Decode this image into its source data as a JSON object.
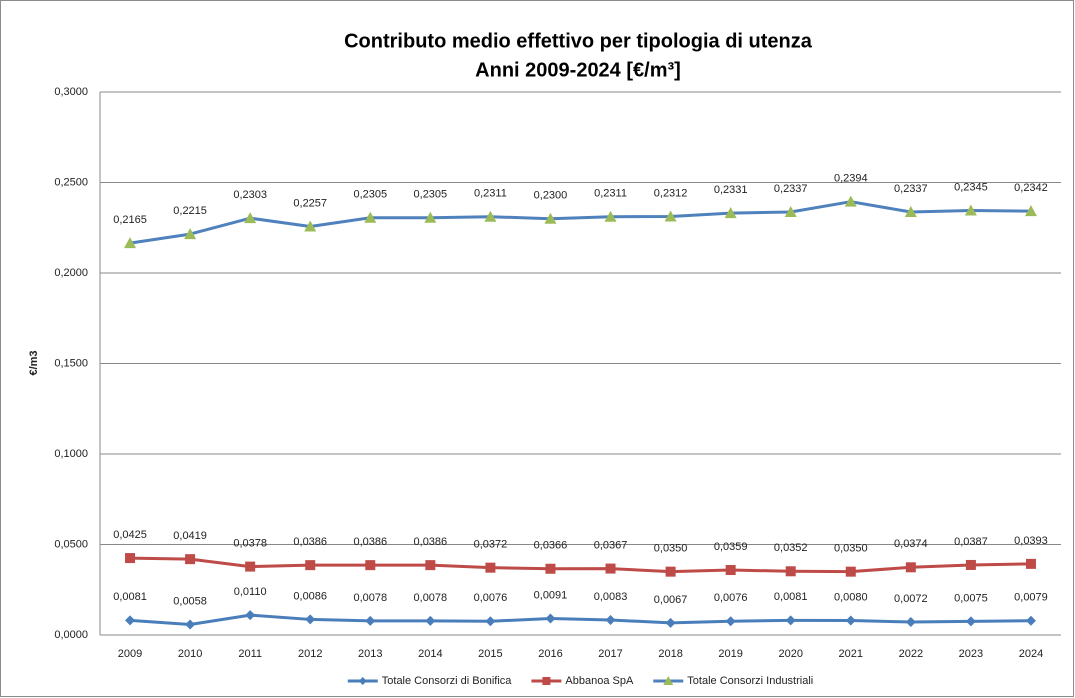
{
  "chart_data": {
    "type": "line",
    "title": "Contributo medio effettivo per tipologia di utenza",
    "subtitle": "Anni 2009-2024 [€/m³]",
    "y_label": "€/m3",
    "categories": [
      "2009",
      "2010",
      "2011",
      "2012",
      "2013",
      "2014",
      "2015",
      "2016",
      "2017",
      "2018",
      "2019",
      "2020",
      "2021",
      "2022",
      "2023",
      "2024"
    ],
    "series": [
      {
        "name": "Totale Consorzi di Bonifica",
        "color": "#4a7ebb",
        "marker": "diamond",
        "marker_color": "#4a7ebb",
        "values": [
          0.0081,
          0.0058,
          0.011,
          0.0086,
          0.0078,
          0.0078,
          0.0076,
          0.0091,
          0.0083,
          0.0067,
          0.0076,
          0.0081,
          0.008,
          0.0072,
          0.0075,
          0.0079
        ],
        "value_labels": [
          "0,0081",
          "0,0058",
          "0,0110",
          "0,0086",
          "0,0078",
          "0,0078",
          "0,0076",
          "0,0091",
          "0,0083",
          "0,0067",
          "0,0076",
          "0,0081",
          "0,0080",
          "0,0072",
          "0,0075",
          "0,0079"
        ]
      },
      {
        "name": "Abbanoa SpA",
        "color": "#be4b48",
        "marker": "square",
        "marker_color": "#be4b48",
        "values": [
          0.0425,
          0.0419,
          0.0378,
          0.0386,
          0.0386,
          0.0386,
          0.0372,
          0.0366,
          0.0367,
          0.035,
          0.0359,
          0.0352,
          0.035,
          0.0374,
          0.0387,
          0.0393
        ],
        "value_labels": [
          "0,0425",
          "0,0419",
          "0,0378",
          "0,0386",
          "0,0386",
          "0,0386",
          "0,0372",
          "0,0366",
          "0,0367",
          "0,0350",
          "0,0359",
          "0,0352",
          "0,0350",
          "0,0374",
          "0,0387",
          "0,0393"
        ]
      },
      {
        "name": "Totale Consorzi Industriali",
        "color": "#4f81bd",
        "marker": "triangle",
        "marker_color": "#9bbb59",
        "values": [
          0.2165,
          0.2215,
          0.2303,
          0.2257,
          0.2305,
          0.2305,
          0.2311,
          0.23,
          0.2311,
          0.2312,
          0.2331,
          0.2337,
          0.2394,
          0.2337,
          0.2345,
          0.2342
        ],
        "value_labels": [
          "0,2165",
          "0,2215",
          "0,2303",
          "0,2257",
          "0,2305",
          "0,2305",
          "0,2311",
          "0,2300",
          "0,2311",
          "0,2312",
          "0,2331",
          "0,2337",
          "0,2394",
          "0,2337",
          "0,2345",
          "0,2342"
        ]
      }
    ],
    "ylim": [
      0,
      0.3
    ],
    "yticks": [
      {
        "value": 0,
        "label": "0,0000"
      },
      {
        "value": 0.05,
        "label": "0,0500"
      },
      {
        "value": 0.1,
        "label": "0,1000"
      },
      {
        "value": 0.15,
        "label": "0,1500"
      },
      {
        "value": 0.2,
        "label": "0,2000"
      },
      {
        "value": 0.25,
        "label": "0,2500"
      },
      {
        "value": 0.3,
        "label": "0,3000"
      }
    ],
    "grid": true,
    "legend": "bottom"
  }
}
